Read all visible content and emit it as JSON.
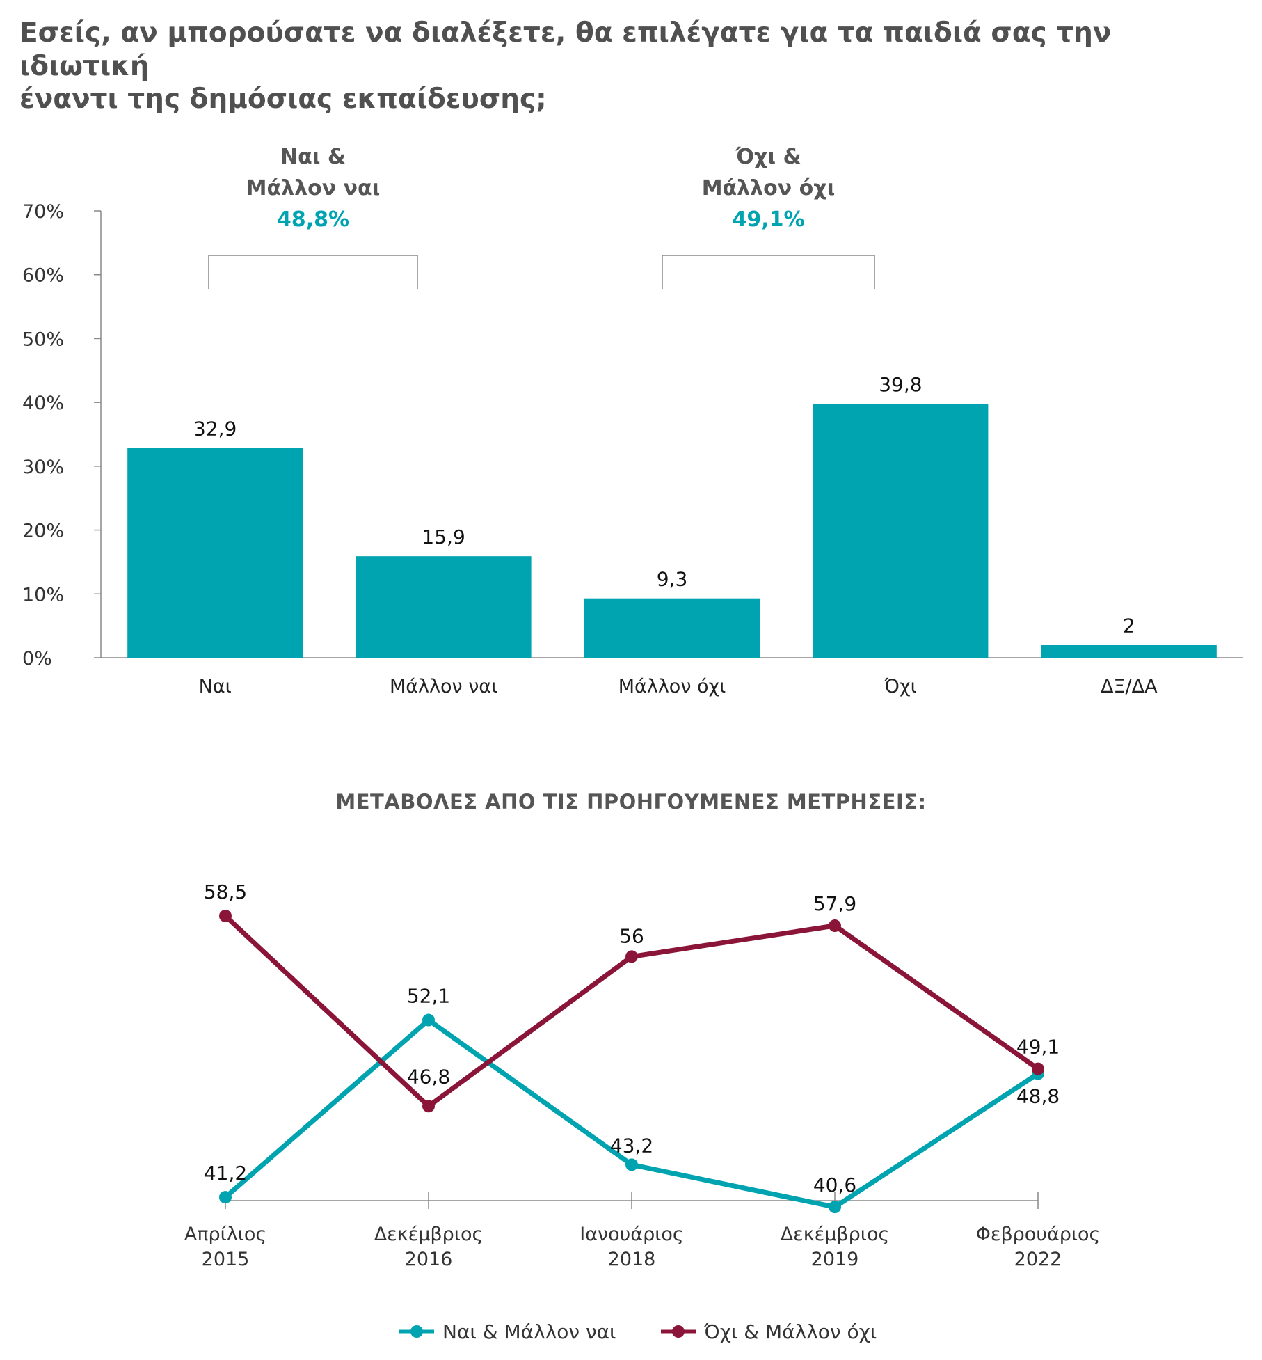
{
  "title": {
    "line1": "Εσείς, αν μπορούσατε να διαλέξετε, θα επιλέγατε για τα παιδιά σας την ιδιωτική",
    "line2": "έναντι της δημόσιας εκπαίδευσης;"
  },
  "colors": {
    "teal": "#00a3b0",
    "maroon": "#8b1538",
    "axis": "#888888"
  },
  "chart_data": [
    {
      "type": "bar",
      "categories": [
        "Ναι",
        "Μάλλον ναι",
        "Μάλλον όχι",
        "Όχι",
        "ΔΞ/ΔΑ"
      ],
      "values": [
        32.9,
        15.9,
        9.3,
        39.8,
        2
      ],
      "value_labels": [
        "32,9",
        "15,9",
        "9,3",
        "39,8",
        "2"
      ],
      "ylim": [
        0,
        70
      ],
      "yticks": [
        0,
        10,
        20,
        30,
        40,
        50,
        60,
        70
      ],
      "ytick_labels": [
        "0%",
        "10%",
        "20%",
        "30%",
        "40%",
        "50%",
        "60%",
        "70%"
      ],
      "groups": [
        {
          "label_line1": "Ναι &",
          "label_line2": "Μάλλον ναι",
          "value": "48,8%",
          "covers": [
            0,
            1
          ]
        },
        {
          "label_line1": "Όχι &",
          "label_line2": "Μάλλον όχι",
          "value": "49,1%",
          "covers": [
            2,
            3
          ]
        }
      ]
    },
    {
      "type": "line",
      "title": "ΜΕΤΑΒΟΛΕΣ ΑΠΟ ΤΙΣ ΠΡΟΗΓΟΥΜΕΝΕΣ ΜΕΤΡΗΣΕΙΣ:",
      "x": [
        {
          "month": "Απρίλιος",
          "year": "2015"
        },
        {
          "month": "Δεκέμβριος",
          "year": "2016"
        },
        {
          "month": "Ιανουάριος",
          "year": "2018"
        },
        {
          "month": "Δεκέμβριος",
          "year": "2019"
        },
        {
          "month": "Φεβρουάριος",
          "year": "2022"
        }
      ],
      "series": [
        {
          "name": "Ναι & Μάλλον ναι",
          "color": "#00a3b0",
          "values": [
            41.2,
            52.1,
            43.2,
            40.6,
            48.8
          ],
          "labels": [
            "41,2",
            "52,1",
            "43,2",
            "40,6",
            "48,8"
          ]
        },
        {
          "name": "Όχι & Μάλλον όχι",
          "color": "#8b1538",
          "values": [
            58.5,
            46.8,
            56,
            57.9,
            49.1
          ],
          "labels": [
            "58,5",
            "46,8",
            "56",
            "57,9",
            "49,1"
          ]
        }
      ]
    }
  ]
}
